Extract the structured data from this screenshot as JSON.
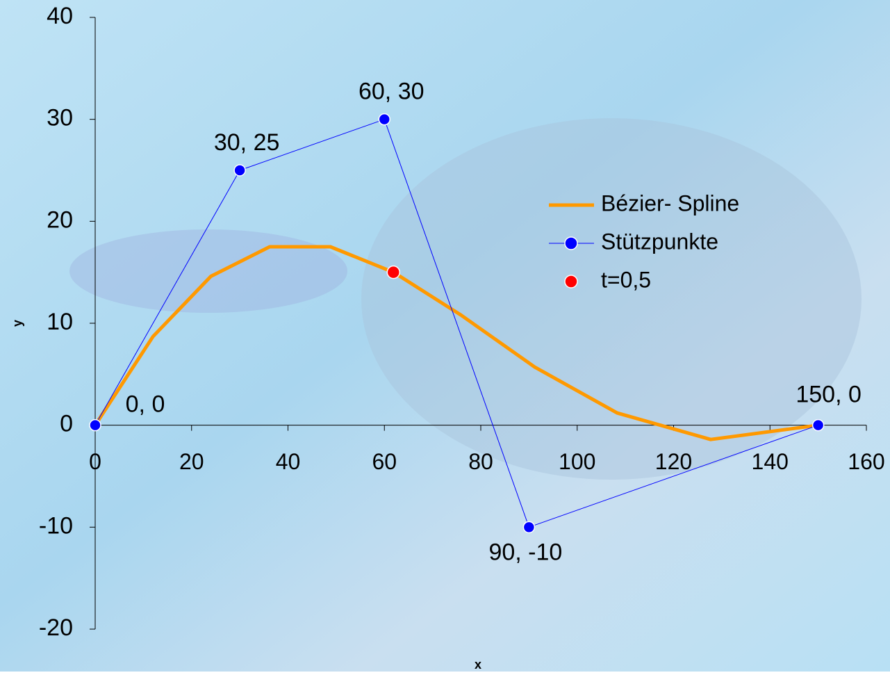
{
  "chart_data": {
    "type": "scatter",
    "x_label": "x",
    "y_label": "y",
    "xlim": [
      0,
      160
    ],
    "xticks": [
      0,
      20,
      40,
      60,
      80,
      100,
      120,
      140,
      160
    ],
    "ylim": [
      -20,
      40
    ],
    "yticks": [
      -20,
      -10,
      0,
      10,
      20,
      30,
      40
    ],
    "legend_position": "upper right",
    "series": [
      {
        "name": "Bézier- Spline",
        "color": "#ff9900",
        "style": "line",
        "x": [
          0,
          12.0,
          24.0,
          36.2,
          48.8,
          61.9,
          75.9,
          91.2,
          108.3,
          127.7,
          150
        ],
        "y": [
          0,
          8.7,
          14.6,
          17.5,
          17.5,
          15.0,
          10.8,
          5.7,
          1.2,
          -1.4,
          0
        ]
      },
      {
        "name": "Stützpunkte",
        "color": "#0000ff",
        "style": "line-marker",
        "x": [
          0,
          30,
          60,
          90,
          150
        ],
        "y": [
          0,
          25,
          30,
          -10,
          0
        ],
        "value_labels": [
          "0, 0",
          "30, 25",
          "60, 30",
          "90, -10",
          "150, 0"
        ]
      },
      {
        "name": "t=0,5",
        "color": "#ff0000",
        "style": "marker",
        "x": [
          61.875
        ],
        "y": [
          15
        ]
      }
    ]
  }
}
